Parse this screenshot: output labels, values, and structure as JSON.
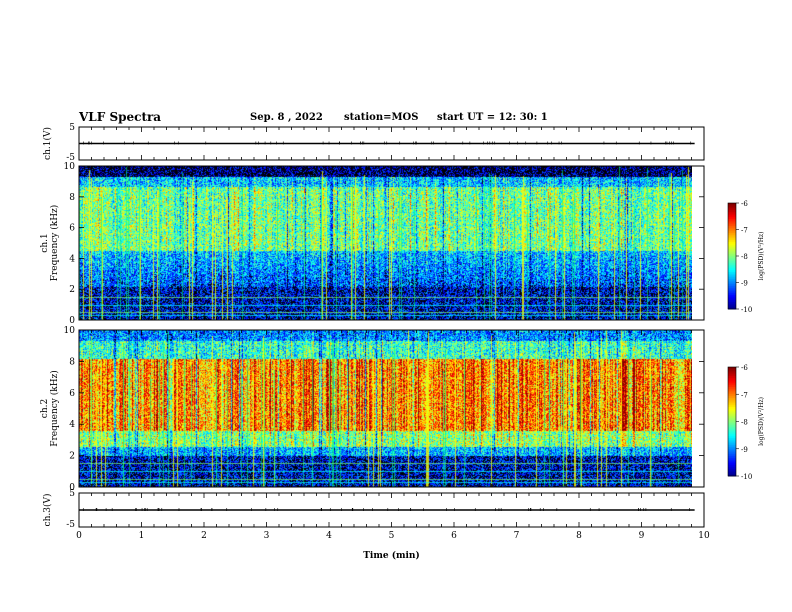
{
  "header": {
    "title": "VLF Spectra",
    "date": "Sep. 8 , 2022",
    "station": "station=MOS",
    "start": "start UT = 12: 30: 1"
  },
  "chart_data": [
    {
      "type": "line",
      "panel": "ch1-waveform",
      "ylabel": "ch.1(V)",
      "ytick_labels": [
        "5",
        "-5"
      ],
      "ylim": [
        -5,
        5
      ],
      "x": [
        0,
        9.85
      ],
      "y": [
        0,
        0
      ],
      "xlim": [
        0,
        10
      ]
    },
    {
      "type": "heatmap",
      "panel": "ch1-spectrogram",
      "ylabel_channel": "ch.1",
      "ylabel": "Frequency (kHz)",
      "ytick_labels": [
        "0",
        "2",
        "4",
        "6",
        "8",
        "10"
      ],
      "ylim": [
        0,
        10
      ],
      "xlim": [
        0,
        10
      ],
      "colorbar": {
        "label": "log(PSD)(V²/Hz)",
        "ticks": [
          "-6",
          "-7",
          "-8",
          "-9",
          "-10"
        ],
        "range": [
          -10,
          -6
        ]
      }
    },
    {
      "type": "heatmap",
      "panel": "ch2-spectrogram",
      "ylabel_channel": "ch.2",
      "ylabel": "Frequency (kHz)",
      "ytick_labels": [
        "0",
        "2",
        "4",
        "6",
        "8",
        "10"
      ],
      "ylim": [
        0,
        10
      ],
      "xlim": [
        0,
        10
      ],
      "colorbar": {
        "label": "log(PSD)(V²/Hz)",
        "ticks": [
          "-6",
          "-7",
          "-8",
          "-9",
          "-10"
        ],
        "range": [
          -10,
          -6
        ]
      }
    },
    {
      "type": "line",
      "panel": "ch3-waveform",
      "ylabel": "ch.3(V)",
      "ytick_labels": [
        "5",
        "-5"
      ],
      "ylim": [
        -5,
        5
      ],
      "x": [
        0,
        9.85
      ],
      "y": [
        0,
        0
      ],
      "xlim": [
        0,
        10
      ],
      "xlabel": "Time (min)",
      "xtick_labels": [
        "0",
        "1",
        "2",
        "3",
        "4",
        "5",
        "6",
        "7",
        "8",
        "9",
        "10"
      ]
    }
  ],
  "colors": {
    "axis": "#000000",
    "background": "#ffffff",
    "spectrogram_empty": "#000000"
  }
}
